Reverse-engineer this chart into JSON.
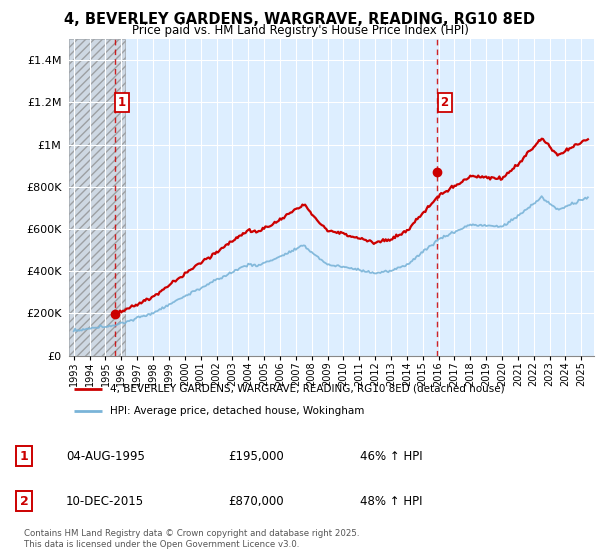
{
  "title": "4, BEVERLEY GARDENS, WARGRAVE, READING, RG10 8ED",
  "subtitle": "Price paid vs. HM Land Registry's House Price Index (HPI)",
  "sale1_date": "04-AUG-1995",
  "sale1_price": 195000,
  "sale1_year": 1995.58,
  "sale1_hpi_pct": "46% ↑ HPI",
  "sale1_label": "1",
  "sale2_date": "10-DEC-2015",
  "sale2_price": 870000,
  "sale2_year": 2015.92,
  "sale2_hpi_pct": "48% ↑ HPI",
  "sale2_label": "2",
  "legend_line1": "4, BEVERLEY GARDENS, WARGRAVE, READING, RG10 8ED (detached house)",
  "legend_line2": "HPI: Average price, detached house, Wokingham",
  "footer": "Contains HM Land Registry data © Crown copyright and database right 2025.\nThis data is licensed under the Open Government Licence v3.0.",
  "hpi_color": "#7ab4d8",
  "price_color": "#cc0000",
  "chart_bg": "#ddeeff",
  "hatch_color": "#c0c8d0",
  "ylim": [
    0,
    1500000
  ],
  "yticks": [
    0,
    200000,
    400000,
    600000,
    800000,
    1000000,
    1200000,
    1400000
  ],
  "ytick_labels": [
    "£0",
    "£200K",
    "£400K",
    "£600K",
    "£800K",
    "£1M",
    "£1.2M",
    "£1.4M"
  ],
  "xstart": 1992.7,
  "xend": 2025.8
}
